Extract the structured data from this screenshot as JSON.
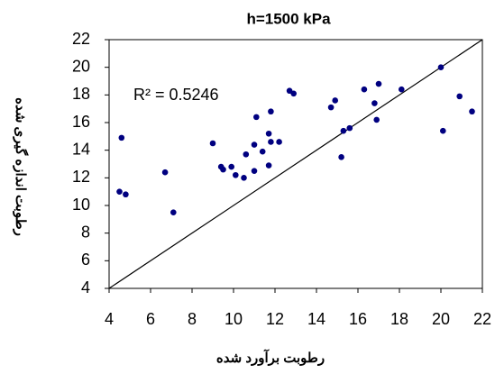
{
  "chart_data": {
    "type": "scatter",
    "title": "h=1500 kPa",
    "x_label": "رطوبت برآورد شده",
    "y_label": "رطوبت اندازه گیری شده",
    "annotation": "R² = 0.5246",
    "color": "#000080",
    "identity_line": true,
    "grid": false,
    "xlim": [
      4,
      22
    ],
    "ylim": [
      4,
      22
    ],
    "xticks": [
      4,
      6,
      8,
      10,
      12,
      14,
      16,
      18,
      20,
      22
    ],
    "yticks": [
      4,
      6,
      8,
      10,
      12,
      14,
      16,
      18,
      20,
      22
    ],
    "x": [
      4.6,
      4.5,
      4.8,
      6.7,
      7.1,
      9.0,
      9.4,
      9.5,
      9.9,
      10.1,
      10.5,
      10.6,
      11.0,
      11.0,
      11.1,
      11.4,
      11.7,
      11.7,
      11.8,
      11.8,
      12.2,
      12.7,
      12.9,
      14.7,
      14.9,
      15.2,
      15.3,
      15.6,
      16.3,
      16.8,
      16.9,
      17.0,
      18.1,
      20.0,
      20.1,
      20.9,
      21.5
    ],
    "values": [
      14.9,
      11.0,
      10.8,
      12.4,
      9.5,
      14.5,
      12.8,
      12.6,
      12.8,
      12.2,
      12.0,
      13.7,
      12.5,
      14.4,
      16.4,
      13.9,
      12.9,
      15.2,
      14.6,
      16.8,
      14.6,
      18.3,
      18.1,
      17.1,
      17.6,
      13.5,
      15.4,
      15.6,
      18.4,
      17.4,
      16.2,
      18.8,
      18.4,
      20.0,
      15.4,
      17.9,
      16.8
    ]
  }
}
